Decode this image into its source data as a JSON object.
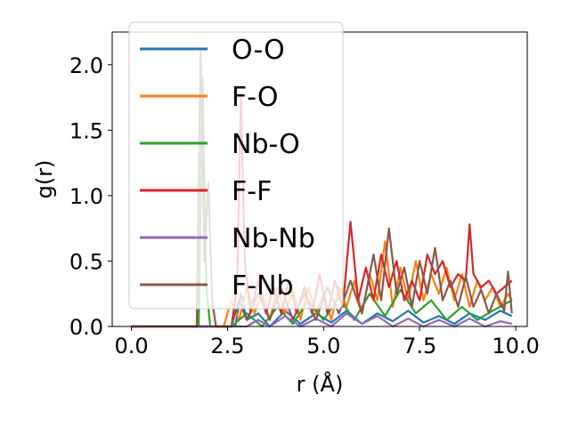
{
  "chart_data": {
    "type": "line",
    "xlabel": "r (Å)",
    "ylabel": "g(r)",
    "xlim": [
      -0.5,
      10.3
    ],
    "ylim": [
      0.0,
      2.25
    ],
    "xticks": [
      0.0,
      2.5,
      5.0,
      7.5,
      10.0
    ],
    "xtick_labels": [
      "0.0",
      "2.5",
      "5.0",
      "7.5",
      "10.0"
    ],
    "yticks": [
      0.0,
      0.5,
      1.0,
      1.5,
      2.0
    ],
    "ytick_labels": [
      "0.0",
      "0.5",
      "1.0",
      "1.5",
      "2.0"
    ],
    "grid": false,
    "legend_position": "upper-left",
    "series": [
      {
        "name": "O-O",
        "color": "#1f77b4",
        "points": [
          [
            0.0,
            0.0
          ],
          [
            2.5,
            0.0
          ],
          [
            2.7,
            0.0
          ],
          [
            2.85,
            0.25
          ],
          [
            3.0,
            0.05
          ],
          [
            3.3,
            0.1
          ],
          [
            3.6,
            0.0
          ],
          [
            4.0,
            0.12
          ],
          [
            4.4,
            0.02
          ],
          [
            4.8,
            0.1
          ],
          [
            5.2,
            0.03
          ],
          [
            5.6,
            0.12
          ],
          [
            6.0,
            0.02
          ],
          [
            6.4,
            0.1
          ],
          [
            6.8,
            0.04
          ],
          [
            7.2,
            0.12
          ],
          [
            7.6,
            0.03
          ],
          [
            8.0,
            0.08
          ],
          [
            8.4,
            0.02
          ],
          [
            8.8,
            0.1
          ],
          [
            9.2,
            0.05
          ],
          [
            9.6,
            0.12
          ],
          [
            9.9,
            0.08
          ]
        ]
      },
      {
        "name": "F-O",
        "color": "#ff7f0e",
        "points": [
          [
            0.0,
            0.0
          ],
          [
            2.4,
            0.0
          ],
          [
            2.6,
            0.2
          ],
          [
            2.8,
            0.05
          ],
          [
            3.0,
            0.3
          ],
          [
            3.2,
            0.1
          ],
          [
            3.4,
            0.25
          ],
          [
            3.6,
            0.05
          ],
          [
            3.8,
            0.3
          ],
          [
            4.0,
            0.1
          ],
          [
            4.2,
            0.28
          ],
          [
            4.4,
            0.05
          ],
          [
            4.6,
            0.3
          ],
          [
            4.8,
            0.1
          ],
          [
            5.0,
            0.25
          ],
          [
            5.2,
            0.05
          ],
          [
            5.4,
            0.3
          ],
          [
            5.6,
            0.15
          ],
          [
            5.8,
            0.35
          ],
          [
            6.0,
            0.1
          ],
          [
            6.2,
            0.4
          ],
          [
            6.4,
            0.2
          ],
          [
            6.6,
            0.65
          ],
          [
            6.8,
            0.15
          ],
          [
            7.0,
            0.45
          ],
          [
            7.2,
            0.2
          ],
          [
            7.4,
            0.5
          ],
          [
            7.6,
            0.2
          ],
          [
            7.8,
            0.4
          ],
          [
            8.0,
            0.25
          ],
          [
            8.2,
            0.45
          ],
          [
            8.4,
            0.2
          ],
          [
            8.6,
            0.4
          ],
          [
            8.8,
            0.15
          ],
          [
            9.0,
            0.35
          ],
          [
            9.2,
            0.2
          ],
          [
            9.4,
            0.3
          ],
          [
            9.6,
            0.15
          ],
          [
            9.8,
            0.25
          ],
          [
            9.9,
            0.2
          ]
        ]
      },
      {
        "name": "Nb-O",
        "color": "#2ca02c",
        "points": [
          [
            0.0,
            0.0
          ],
          [
            1.75,
            0.0
          ],
          [
            1.85,
            1.9
          ],
          [
            1.95,
            0.3
          ],
          [
            2.05,
            0.0
          ],
          [
            2.6,
            0.0
          ],
          [
            3.0,
            0.1
          ],
          [
            3.4,
            0.0
          ],
          [
            3.8,
            0.15
          ],
          [
            4.2,
            0.02
          ],
          [
            4.6,
            0.2
          ],
          [
            5.0,
            0.05
          ],
          [
            5.4,
            0.22
          ],
          [
            5.8,
            0.05
          ],
          [
            6.2,
            0.25
          ],
          [
            6.6,
            0.08
          ],
          [
            7.0,
            0.28
          ],
          [
            7.4,
            0.1
          ],
          [
            7.8,
            0.2
          ],
          [
            8.2,
            0.05
          ],
          [
            8.6,
            0.15
          ],
          [
            9.0,
            0.05
          ],
          [
            9.4,
            0.12
          ],
          [
            9.9,
            0.2
          ]
        ]
      },
      {
        "name": "F-F",
        "color": "#d62728",
        "points": [
          [
            0.0,
            0.0
          ],
          [
            2.6,
            0.0
          ],
          [
            2.75,
            0.3
          ],
          [
            2.85,
            1.75
          ],
          [
            2.95,
            0.5
          ],
          [
            3.1,
            0.1
          ],
          [
            3.3,
            0.35
          ],
          [
            3.5,
            0.1
          ],
          [
            3.7,
            0.3
          ],
          [
            3.9,
            0.1
          ],
          [
            4.1,
            0.35
          ],
          [
            4.3,
            0.1
          ],
          [
            4.5,
            0.3
          ],
          [
            4.7,
            0.1
          ],
          [
            4.9,
            0.4
          ],
          [
            5.1,
            0.1
          ],
          [
            5.3,
            0.35
          ],
          [
            5.5,
            0.15
          ],
          [
            5.7,
            0.8
          ],
          [
            5.9,
            0.2
          ],
          [
            6.1,
            0.45
          ],
          [
            6.3,
            0.2
          ],
          [
            6.5,
            0.55
          ],
          [
            6.7,
            0.3
          ],
          [
            6.9,
            0.5
          ],
          [
            7.1,
            0.2
          ],
          [
            7.3,
            0.35
          ],
          [
            7.5,
            0.2
          ],
          [
            7.7,
            0.55
          ],
          [
            7.9,
            0.4
          ],
          [
            8.1,
            0.5
          ],
          [
            8.3,
            0.3
          ],
          [
            8.5,
            0.4
          ],
          [
            8.7,
            0.35
          ],
          [
            8.8,
            0.78
          ],
          [
            8.9,
            0.4
          ],
          [
            9.1,
            0.3
          ],
          [
            9.3,
            0.35
          ],
          [
            9.5,
            0.25
          ],
          [
            9.7,
            0.3
          ],
          [
            9.9,
            0.35
          ]
        ]
      },
      {
        "name": "Nb-Nb",
        "color": "#9467bd",
        "points": [
          [
            0.0,
            0.0
          ],
          [
            3.0,
            0.0
          ],
          [
            3.3,
            0.05
          ],
          [
            3.6,
            0.0
          ],
          [
            4.0,
            0.08
          ],
          [
            4.4,
            0.0
          ],
          [
            4.8,
            0.06
          ],
          [
            5.2,
            0.0
          ],
          [
            5.6,
            0.1
          ],
          [
            6.0,
            0.02
          ],
          [
            6.4,
            0.08
          ],
          [
            6.8,
            0.0
          ],
          [
            7.2,
            0.06
          ],
          [
            7.6,
            0.0
          ],
          [
            8.0,
            0.05
          ],
          [
            8.4,
            0.0
          ],
          [
            8.8,
            0.06
          ],
          [
            9.2,
            0.0
          ],
          [
            9.6,
            0.04
          ],
          [
            9.9,
            0.02
          ]
        ]
      },
      {
        "name": "F-Nb",
        "color": "#8c564b",
        "points": [
          [
            0.0,
            0.0
          ],
          [
            1.7,
            0.0
          ],
          [
            1.8,
            2.1
          ],
          [
            1.9,
            0.5
          ],
          [
            2.0,
            1.1
          ],
          [
            2.1,
            0.2
          ],
          [
            2.2,
            0.0
          ],
          [
            2.6,
            0.0
          ],
          [
            2.8,
            0.2
          ],
          [
            3.0,
            0.05
          ],
          [
            3.3,
            0.25
          ],
          [
            3.6,
            0.05
          ],
          [
            3.9,
            0.3
          ],
          [
            4.2,
            0.05
          ],
          [
            4.5,
            0.25
          ],
          [
            4.8,
            0.05
          ],
          [
            5.1,
            0.3
          ],
          [
            5.4,
            0.1
          ],
          [
            5.7,
            0.35
          ],
          [
            6.0,
            0.1
          ],
          [
            6.3,
            0.55
          ],
          [
            6.5,
            0.2
          ],
          [
            6.7,
            0.75
          ],
          [
            6.9,
            0.25
          ],
          [
            7.1,
            0.45
          ],
          [
            7.3,
            0.15
          ],
          [
            7.5,
            0.5
          ],
          [
            7.7,
            0.25
          ],
          [
            7.9,
            0.6
          ],
          [
            8.1,
            0.2
          ],
          [
            8.3,
            0.35
          ],
          [
            8.5,
            0.15
          ],
          [
            8.7,
            0.38
          ],
          [
            8.9,
            0.15
          ],
          [
            9.1,
            0.28
          ],
          [
            9.3,
            0.1
          ],
          [
            9.5,
            0.25
          ],
          [
            9.7,
            0.12
          ],
          [
            9.8,
            0.42
          ],
          [
            9.9,
            0.1
          ]
        ]
      }
    ]
  }
}
